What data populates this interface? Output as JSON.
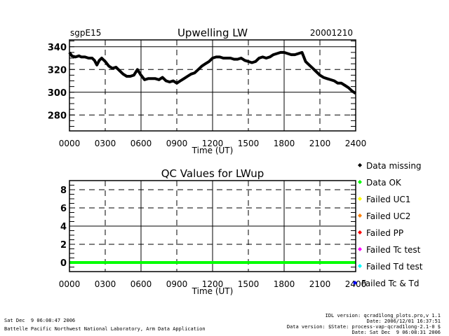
{
  "chart_data": [
    {
      "type": "line",
      "title": "Upwelling LW",
      "left_label": "sgpE15",
      "right_label": "20001210",
      "xlabel": "Time (UT)",
      "ylabel": "",
      "xlim": [
        0,
        24
      ],
      "ylim": [
        266,
        346
      ],
      "x_tick_labels": [
        "0000",
        "0300",
        "0600",
        "0900",
        "1200",
        "1500",
        "1800",
        "2100",
        "2400"
      ],
      "y_ticks": [
        280,
        300,
        320,
        340
      ],
      "y_tick_labels": [
        "280",
        "300",
        "320",
        "340"
      ],
      "grid": true,
      "series": [
        {
          "name": "LWup",
          "color": "#000000",
          "x": [
            0,
            0.2,
            0.5,
            0.8,
            1.0,
            1.3,
            1.6,
            1.9,
            2.1,
            2.3,
            2.5,
            2.7,
            3.0,
            3.3,
            3.6,
            3.9,
            4.2,
            4.5,
            4.8,
            5.1,
            5.4,
            5.7,
            6.0,
            6.3,
            6.6,
            6.9,
            7.2,
            7.5,
            7.8,
            8.1,
            8.4,
            8.7,
            9.0,
            9.3,
            9.6,
            9.9,
            10.2,
            10.5,
            10.8,
            11.1,
            11.4,
            11.7,
            12.0,
            12.3,
            12.6,
            12.9,
            13.2,
            13.5,
            13.8,
            14.1,
            14.4,
            14.7,
            15.0,
            15.3,
            15.6,
            15.9,
            16.2,
            16.5,
            16.8,
            17.1,
            17.4,
            17.7,
            18.0,
            18.3,
            18.6,
            18.9,
            19.2,
            19.5,
            19.8,
            20.1,
            20.4,
            20.7,
            21.0,
            21.3,
            21.6,
            21.9,
            22.2,
            22.5,
            22.8,
            23.1,
            23.4,
            23.7,
            24.0
          ],
          "y": [
            335,
            332,
            331,
            332,
            331,
            331,
            330,
            330,
            328,
            324,
            328,
            330,
            327,
            323,
            321,
            322,
            319,
            316,
            314,
            314,
            315,
            320,
            315,
            311,
            312,
            312,
            312,
            311,
            313,
            310,
            309,
            310,
            308,
            310,
            312,
            314,
            316,
            317,
            320,
            323,
            325,
            327,
            330,
            331,
            331,
            330,
            330,
            330,
            329,
            329,
            330,
            328,
            327,
            326,
            327,
            330,
            331,
            330,
            331,
            333,
            334,
            335,
            335,
            334,
            333,
            333,
            334,
            335,
            327,
            324,
            321,
            318,
            315,
            313,
            312,
            311,
            310,
            308,
            308,
            306,
            304,
            301,
            299
          ]
        }
      ]
    },
    {
      "type": "line",
      "title": "QC Values for LWup",
      "xlabel": "Time (UT)",
      "ylabel": "",
      "xlim": [
        0,
        24
      ],
      "ylim": [
        -1,
        9
      ],
      "x_tick_labels": [
        "0000",
        "0300",
        "0600",
        "0900",
        "1200",
        "1500",
        "1800",
        "2100",
        "2400"
      ],
      "y_ticks": [
        0,
        2,
        4,
        6,
        8
      ],
      "y_tick_labels": [
        "0",
        "2",
        "4",
        "6",
        "8"
      ],
      "grid": true,
      "series": [
        {
          "name": "QC LWup",
          "color": "#00ff00",
          "x": [
            0,
            24
          ],
          "y": [
            0,
            0
          ]
        }
      ],
      "legend": {
        "placement": "right",
        "entries": [
          {
            "label": "Data missing",
            "color": "#000000"
          },
          {
            "label": "Data OK",
            "color": "#00ff00"
          },
          {
            "label": "Failed UC1",
            "color": "#ffff00"
          },
          {
            "label": "Failed UC2",
            "color": "#ff8000"
          },
          {
            "label": "Failed PP",
            "color": "#ff0000"
          },
          {
            "label": "Failed Tc test",
            "color": "#ff00ff"
          },
          {
            "label": "Failed Td test",
            "color": "#00ffff"
          },
          {
            "label": "Failed Tc & Td",
            "color": "#0000ff"
          }
        ]
      }
    }
  ],
  "footer": {
    "left_line1": "Sat Dec  9 06:08:47 2006",
    "left_line2": "Battelle Pacific Northwest National Laboratory, Arm Data Application",
    "right_line1": "IDL version: qcrad1long_plots.pro,v 1.1",
    "right_line2": "Date: 2006/12/01 16:37:51",
    "right_line3": "Data version: $State: process-vap-qcrad1long-2.1-0 $",
    "right_line4": "Date: Sat Dec  9 06:08:31 2006"
  }
}
